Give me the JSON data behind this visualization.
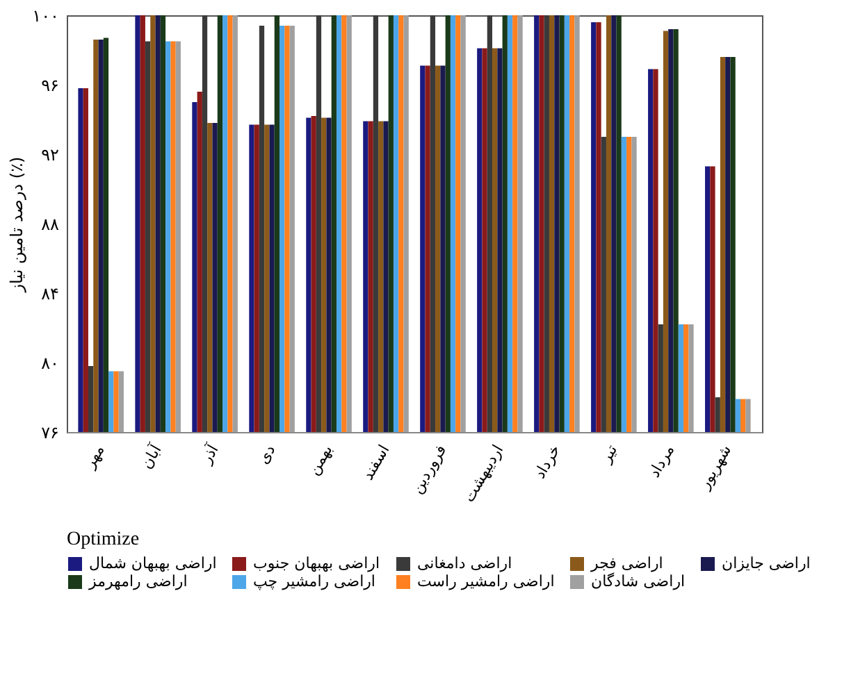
{
  "chart_data": {
    "type": "bar",
    "ylabel": "درصد تامین نیاز (٪)",
    "legend_title": "Optimize",
    "legend": "bottom",
    "grid": false,
    "categories": [
      "مهر",
      "آبان",
      "آذر",
      "دی",
      "بهمن",
      "اسفند",
      "فروردین",
      "اردیبهشت",
      "خرداد",
      "تیر",
      "مرداد",
      "شهریور"
    ],
    "ylim": [
      76,
      100
    ],
    "yticks": [
      {
        "value": 76,
        "label": "۷۶"
      },
      {
        "value": 80,
        "label": "۸۰"
      },
      {
        "value": 84,
        "label": "۸۴"
      },
      {
        "value": 88,
        "label": "۸۸"
      },
      {
        "value": 92,
        "label": "۹۲"
      },
      {
        "value": 96,
        "label": "۹۶"
      },
      {
        "value": 100,
        "label": "۱۰۰"
      }
    ],
    "series": [
      {
        "name": "اراضی بهبهان شمال",
        "color": "#1a1a80",
        "values": [
          95.8,
          100,
          95.0,
          93.7,
          94.1,
          93.9,
          97.1,
          98.1,
          100,
          99.6,
          96.9,
          91.3
        ]
      },
      {
        "name": "اراضی بهبهان جنوب",
        "color": "#8b1a1a",
        "values": [
          95.8,
          100,
          95.6,
          93.7,
          94.2,
          93.9,
          97.1,
          98.1,
          100,
          99.6,
          96.9,
          91.3
        ]
      },
      {
        "name": "اراضی دامغانی",
        "color": "#3a3a3a",
        "values": [
          79.8,
          98.5,
          100,
          99.4,
          100,
          100,
          100,
          100,
          100,
          93.0,
          82.2,
          78.0
        ]
      },
      {
        "name": "اراضی فجر",
        "color": "#8b5a1a",
        "values": [
          98.6,
          100,
          93.8,
          93.7,
          94.1,
          93.9,
          97.1,
          98.1,
          100,
          100,
          99.1,
          97.6
        ]
      },
      {
        "name": "اراضی جایزان",
        "color": "#1a1a50",
        "values": [
          98.6,
          100,
          93.8,
          93.7,
          94.1,
          93.9,
          97.1,
          98.1,
          100,
          100,
          99.2,
          97.6
        ]
      },
      {
        "name": "اراضی رامهرمز",
        "color": "#1a3a1a",
        "values": [
          98.7,
          100,
          100,
          100,
          100,
          100,
          100,
          100,
          100,
          100,
          99.2,
          97.6
        ]
      },
      {
        "name": "اراضی رامشیر چپ",
        "color": "#4da6e8",
        "values": [
          79.5,
          98.5,
          100,
          99.4,
          100,
          100,
          100,
          100,
          100,
          93.0,
          82.2,
          77.9
        ]
      },
      {
        "name": "اراضی رامشیر راست",
        "color": "#ff8020",
        "values": [
          79.5,
          98.5,
          100,
          99.4,
          100,
          100,
          100,
          100,
          100,
          93.0,
          82.2,
          77.9
        ]
      },
      {
        "name": "اراضی شادگان",
        "color": "#a0a0a0",
        "values": [
          79.5,
          98.5,
          100,
          99.4,
          100,
          100,
          100,
          100,
          100,
          93.0,
          82.2,
          77.9
        ]
      }
    ]
  }
}
